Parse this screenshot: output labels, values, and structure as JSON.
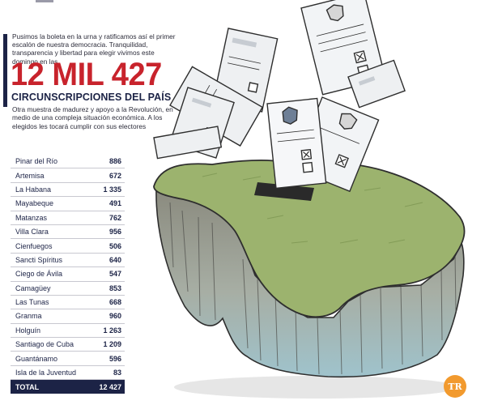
{
  "intro_text": "Pusimos la boleta en la urna y ratificamos así el primer escalón de nuestra democracia. Tranquilidad, transparencia y libertad para elegir vivimos este domingo en las",
  "headline": "12 MIL 427",
  "subheadline": "CIRCUNSCRIPCIONES DEL PAÍS",
  "description": "Otra muestra de madurez y apoyo a la Revolución, en medio de una compleja situación económica. A los elegidos les tocará cumplir con sus electores",
  "table": {
    "rows": [
      {
        "province": "Pinar del Río",
        "value": "886"
      },
      {
        "province": "Artemisa",
        "value": "672"
      },
      {
        "province": "La Habana",
        "value": "1 335"
      },
      {
        "province": "Mayabeque",
        "value": "491"
      },
      {
        "province": "Matanzas",
        "value": "762"
      },
      {
        "province": "Villa Clara",
        "value": "956"
      },
      {
        "province": "Cienfuegos",
        "value": "506"
      },
      {
        "province": "Sancti Spíritus",
        "value": "640"
      },
      {
        "province": "Ciego de Ávila",
        "value": "547"
      },
      {
        "province": "Camagüey",
        "value": "853"
      },
      {
        "province": "Las Tunas",
        "value": "668"
      },
      {
        "province": "Granma",
        "value": "960"
      },
      {
        "province": "Holguín",
        "value": "1 263"
      },
      {
        "province": "Santiago de Cuba",
        "value": "1 209"
      },
      {
        "province": "Guantánamo",
        "value": "596"
      },
      {
        "province": "Isla de la Juventud",
        "value": "83"
      }
    ],
    "total_label": "TOTAL",
    "total_value": "12 427"
  },
  "badge": "TR",
  "colors": {
    "headline": "#c8232c",
    "navy": "#1c2346",
    "badge": "#f29a2e"
  },
  "illustration_icon": "ballot-box-island-illustration"
}
